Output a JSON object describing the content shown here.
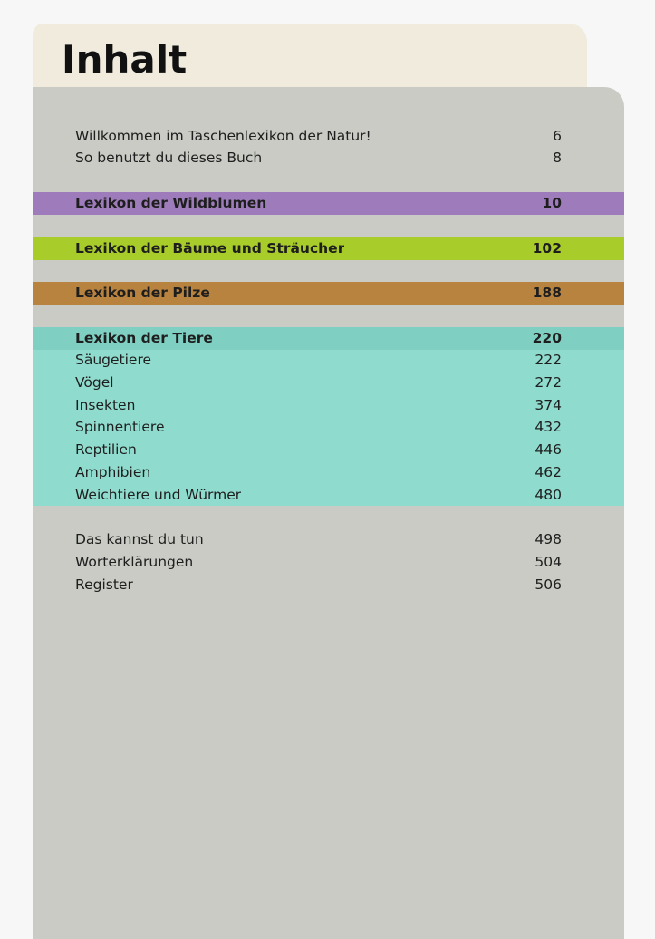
{
  "title": "Inhalt",
  "colors": {
    "wildblumen": "#9e7cbb",
    "baeume": "#a8cc2a",
    "pilze": "#b8833f",
    "tiere_head": "#7fcfc2",
    "tiere_body": "#8fdccf"
  },
  "entries": {
    "willkommen": {
      "label": "Willkommen im Taschenlexikon der Natur!",
      "page": "6"
    },
    "benutzt": {
      "label": "So benutzt du dieses Buch",
      "page": "8"
    },
    "wildblumen": {
      "label": "Lexikon der Wildblumen",
      "page": "10"
    },
    "baeume": {
      "label": "Lexikon der Bäume und Sträucher",
      "page": "102"
    },
    "pilze": {
      "label": "Lexikon der Pilze",
      "page": "188"
    },
    "tiere": {
      "label": "Lexikon der Tiere",
      "page": "220"
    },
    "saeugetiere": {
      "label": "Säugetiere",
      "page": "222"
    },
    "voegel": {
      "label": "Vögel",
      "page": "272"
    },
    "insekten": {
      "label": "Insekten",
      "page": "374"
    },
    "spinnentiere": {
      "label": "Spinnentiere",
      "page": "432"
    },
    "reptilien": {
      "label": "Reptilien",
      "page": "446"
    },
    "amphibien": {
      "label": "Amphibien",
      "page": "462"
    },
    "weichtiere": {
      "label": "Weichtiere und Würmer",
      "page": "480"
    },
    "tun": {
      "label": "Das kannst du tun",
      "page": "498"
    },
    "worterklaerungen": {
      "label": "Worterklärungen",
      "page": "504"
    },
    "register": {
      "label": "Register",
      "page": "506"
    }
  }
}
